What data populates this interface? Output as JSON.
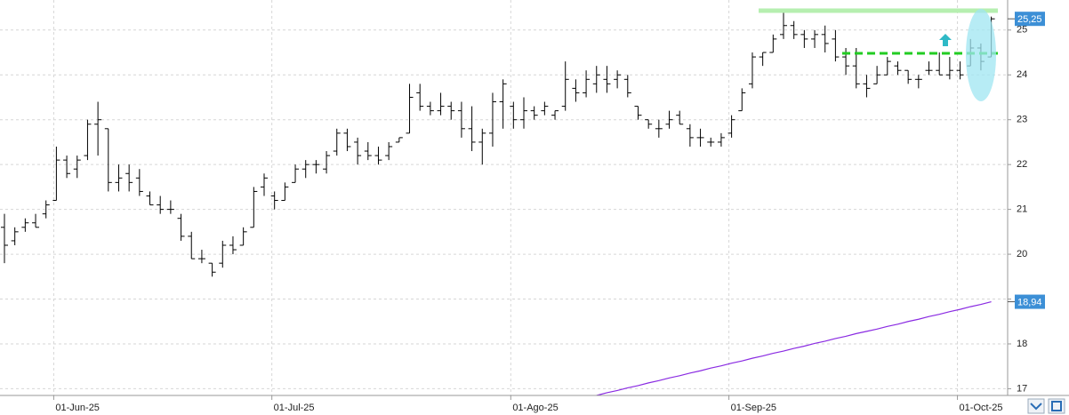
{
  "chart_data": {
    "type": "ohlc",
    "categories": [
      null,
      null,
      null,
      null,
      null,
      "01-Jun-25",
      null,
      null,
      null,
      null,
      null,
      null,
      null,
      null,
      null,
      null,
      null,
      null,
      null,
      null,
      null,
      null,
      null,
      null,
      null,
      null,
      "01-Jul-25",
      null,
      null,
      null,
      null,
      null,
      null,
      null,
      null,
      null,
      null,
      null,
      null,
      null,
      null,
      null,
      null,
      null,
      null,
      null,
      null,
      null,
      null,
      "01-Ago-25",
      null,
      null,
      null,
      null,
      null,
      null,
      null,
      null,
      null,
      null,
      null,
      null,
      null,
      null,
      null,
      null,
      null,
      null,
      null,
      null,
      "01-Sep-25",
      null,
      null,
      null,
      null,
      null,
      null,
      null,
      null,
      null,
      null,
      null,
      null,
      null,
      null,
      null,
      null,
      null,
      null,
      null,
      null,
      null,
      "01-Oct-25",
      null,
      null,
      null
    ],
    "open": [
      20.6,
      20.3,
      20.6,
      20.7,
      20.9,
      21.2,
      22.1,
      21.9,
      22.2,
      22.9,
      22.8,
      21.6,
      21.8,
      21.7,
      21.3,
      21.1,
      21.0,
      20.8,
      20.4,
      19.9,
      19.8,
      19.8,
      20.2,
      20.2,
      20.6,
      21.5,
      21.3,
      21.2,
      21.6,
      21.9,
      22.0,
      21.9,
      22.3,
      22.7,
      22.5,
      22.3,
      22.2,
      22.2,
      22.5,
      22.7,
      23.6,
      23.3,
      23.2,
      23.3,
      23.2,
      22.8,
      22.5,
      22.7,
      23.4,
      23.3,
      23.0,
      23.2,
      23.2,
      23.1,
      23.3,
      23.7,
      23.6,
      23.8,
      23.9,
      23.9,
      23.9,
      23.3,
      23.0,
      22.8,
      22.9,
      23.1,
      22.8,
      22.6,
      22.5,
      22.5,
      22.7,
      23.2,
      23.8,
      24.4,
      24.5,
      24.9,
      25.1,
      24.9,
      24.8,
      24.9,
      24.8,
      24.4,
      24.2,
      23.8,
      23.8,
      24.0,
      24.2,
      24.1,
      23.9,
      24.1,
      24.1,
      24.0,
      24.1,
      24.2,
      24.6,
      24.4
    ],
    "high": [
      20.9,
      20.6,
      20.8,
      20.9,
      21.2,
      22.4,
      22.2,
      22.2,
      23.0,
      23.4,
      22.8,
      22.0,
      22.0,
      21.9,
      21.4,
      21.3,
      21.2,
      20.9,
      20.5,
      20.1,
      19.8,
      20.3,
      20.4,
      20.6,
      21.5,
      21.8,
      21.4,
      21.6,
      22.0,
      22.1,
      22.1,
      22.3,
      22.8,
      22.8,
      22.6,
      22.5,
      22.4,
      22.5,
      22.6,
      23.8,
      23.8,
      23.4,
      23.6,
      23.4,
      23.4,
      23.3,
      22.8,
      23.6,
      23.9,
      23.4,
      23.5,
      23.3,
      23.4,
      23.2,
      24.3,
      23.9,
      24.1,
      24.2,
      24.2,
      24.1,
      24.0,
      23.3,
      23.0,
      23.0,
      23.2,
      23.2,
      22.9,
      22.8,
      22.6,
      22.7,
      23.1,
      23.7,
      24.5,
      24.5,
      24.9,
      25.4,
      25.2,
      25.0,
      25.0,
      25.1,
      25.0,
      24.6,
      24.6,
      24.0,
      24.2,
      24.4,
      24.3,
      24.1,
      24.0,
      24.3,
      24.5,
      24.4,
      24.3,
      24.8,
      24.7,
      25.3
    ],
    "low": [
      19.8,
      20.2,
      20.5,
      20.6,
      20.8,
      21.2,
      21.7,
      21.7,
      22.1,
      22.2,
      21.4,
      21.4,
      21.4,
      21.3,
      21.1,
      20.9,
      20.9,
      20.3,
      19.9,
      19.8,
      19.5,
      19.7,
      20.0,
      20.2,
      20.6,
      21.3,
      21.0,
      21.2,
      21.6,
      21.7,
      21.8,
      21.8,
      22.2,
      22.3,
      22.0,
      22.1,
      22.0,
      22.1,
      22.5,
      22.7,
      23.2,
      23.1,
      23.1,
      23.0,
      22.6,
      22.3,
      22.0,
      22.4,
      22.8,
      22.8,
      22.8,
      23.0,
      23.1,
      23.0,
      23.2,
      23.4,
      23.5,
      23.6,
      23.6,
      23.7,
      23.5,
      23.0,
      22.8,
      22.6,
      22.8,
      22.9,
      22.4,
      22.4,
      22.4,
      22.4,
      22.6,
      23.2,
      23.7,
      24.2,
      24.5,
      24.8,
      24.8,
      24.6,
      24.6,
      24.5,
      24.3,
      24.0,
      23.7,
      23.5,
      23.8,
      24.0,
      24.0,
      23.8,
      23.7,
      24.0,
      24.0,
      23.9,
      23.9,
      24.2,
      24.1,
      24.4
    ],
    "close": [
      20.2,
      20.5,
      20.7,
      20.6,
      21.1,
      22.1,
      21.8,
      22.1,
      22.9,
      23.0,
      21.6,
      21.7,
      21.6,
      21.4,
      21.1,
      21.0,
      21.0,
      20.4,
      19.9,
      19.9,
      19.6,
      20.2,
      20.1,
      20.5,
      21.4,
      21.7,
      21.2,
      21.5,
      21.9,
      22.0,
      22.0,
      22.2,
      22.7,
      22.4,
      22.2,
      22.2,
      22.1,
      22.4,
      22.6,
      23.5,
      23.3,
      23.2,
      23.3,
      23.2,
      22.8,
      22.5,
      22.7,
      23.4,
      23.8,
      23.0,
      23.2,
      23.1,
      23.3,
      23.2,
      23.9,
      23.6,
      23.9,
      24.0,
      23.8,
      24.0,
      23.6,
      23.1,
      22.9,
      22.8,
      23.0,
      22.9,
      22.6,
      22.6,
      22.5,
      22.6,
      23.0,
      23.6,
      24.4,
      24.5,
      24.8,
      25.1,
      24.9,
      24.8,
      24.9,
      24.7,
      24.4,
      24.2,
      23.8,
      23.7,
      24.0,
      24.3,
      24.1,
      23.9,
      23.9,
      24.1,
      24.0,
      24.1,
      24.0,
      24.6,
      24.3,
      25.25
    ],
    "color": "#000000",
    "line": {
      "color": "#8a2be2",
      "values": [
        null,
        null,
        null,
        null,
        null,
        null,
        null,
        null,
        null,
        null,
        null,
        null,
        null,
        null,
        null,
        null,
        null,
        null,
        null,
        null,
        null,
        null,
        null,
        null,
        null,
        null,
        null,
        null,
        null,
        null,
        null,
        null,
        null,
        null,
        null,
        null,
        null,
        null,
        null,
        null,
        null,
        null,
        null,
        null,
        null,
        null,
        null,
        null,
        null,
        null,
        null,
        null,
        null,
        null,
        null,
        null,
        16.8,
        16.85,
        16.91,
        16.96,
        17.02,
        17.07,
        17.13,
        17.18,
        17.24,
        17.29,
        17.35,
        17.4,
        17.46,
        17.51,
        17.57,
        17.62,
        17.68,
        17.73,
        17.79,
        17.84,
        17.9,
        17.95,
        18.01,
        18.06,
        18.12,
        18.17,
        18.23,
        18.28,
        18.33,
        18.39,
        18.44,
        18.5,
        18.55,
        18.61,
        18.66,
        18.72,
        18.77,
        18.83,
        18.88,
        18.94
      ]
    },
    "price_tags": [
      {
        "value": 25.25,
        "label": "25,25"
      },
      {
        "value": 18.94,
        "label": "18,94"
      }
    ],
    "tag_color": "#3c8fd6",
    "ylim": [
      16.85,
      25.67
    ],
    "yticks": [
      17,
      18,
      19,
      20,
      21,
      22,
      23,
      24,
      25
    ],
    "grid": true
  }
}
